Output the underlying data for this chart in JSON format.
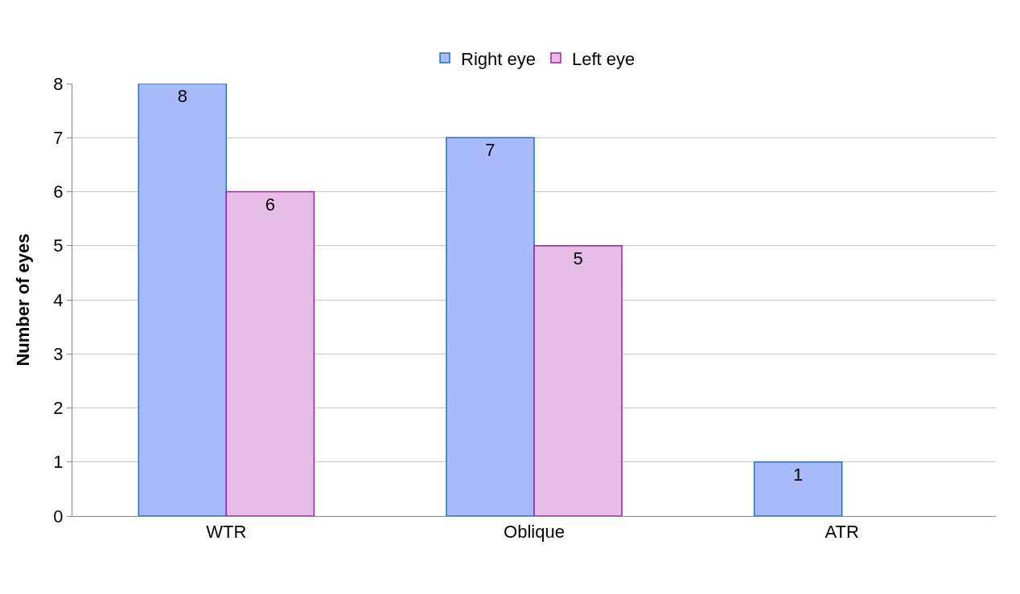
{
  "chart_data": {
    "type": "bar",
    "ylabel": "Number of eyes",
    "categories": [
      "WTR",
      "Oblique",
      "ATR"
    ],
    "series": [
      {
        "name": "Right eye",
        "color": "#a8bbf8",
        "values": [
          8,
          7,
          1
        ],
        "value_labels": [
          "8",
          "7",
          "1"
        ]
      },
      {
        "name": "Left eye",
        "color": "#e6bde6",
        "values": [
          6,
          5,
          null
        ],
        "value_labels": [
          "6",
          "5",
          null
        ]
      }
    ],
    "ylim": [
      0,
      8
    ],
    "yticks": [
      0,
      1,
      2,
      3,
      4,
      5,
      6,
      7,
      8
    ],
    "grid": "y",
    "legend": "top"
  }
}
